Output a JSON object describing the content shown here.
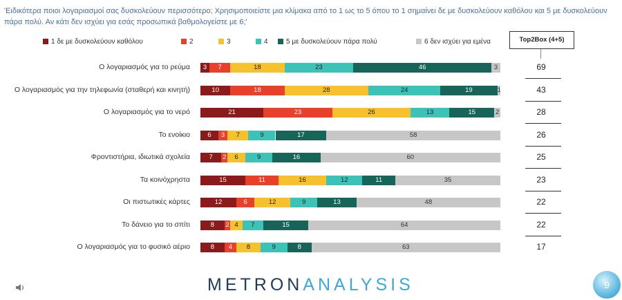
{
  "question": "'Ειδικότερα ποιοι λογαριασμοί σας δυσκολεύουν περισσότερο; Χρησιμοποιείστε μια κλίμακα από το 1 ως το 5 όπου το 1 σημαίνει δε με δυσκολεύουν καθόλου και 5 με δυσκολεύουν πάρα πολύ. Αν κάτι δεν ισχύει για εσάς προσωπικά βαθμολογείστε με 6;'",
  "top2_header": "Top2Box (4+5)",
  "brand": {
    "part1": "METRON",
    "part2": "ANALYSIS"
  },
  "page_number": "9",
  "colors": [
    "#8b1a1a",
    "#e8402a",
    "#f7c12d",
    "#3cc2b6",
    "#176559",
    "#c7c7c7"
  ],
  "label_colors": [
    "#ffffff",
    "#ffffff",
    "#222222",
    "#222222",
    "#ffffff",
    "#333333"
  ],
  "chart_data": {
    "type": "bar",
    "stacked": true,
    "orientation": "horizontal",
    "legend_placement": "top",
    "categories": [
      "Ο λογαριασμός για το ρεύμα",
      "Ο λογαριασμός για την τηλεφωνία (σταθερή και κινητή)",
      "Ο λογαριασμός για το νερό",
      "Το ενοίκιο",
      "Φροντιστήρια, ιδιωτικά σχολεία",
      "Τα κοινόχρηστα",
      "Οι πιστωτικές κάρτες",
      "Το δάνειο για το σπίτι",
      "Ο λογαριασμός για το φυσικό αέριο"
    ],
    "series": [
      {
        "name": "1  δε με δυσκολεύουν καθόλου",
        "values": [
          3,
          10,
          21,
          6,
          7,
          15,
          12,
          8,
          8
        ]
      },
      {
        "name": "2",
        "values": [
          7,
          18,
          23,
          3,
          2,
          11,
          6,
          2,
          4
        ]
      },
      {
        "name": "3",
        "values": [
          18,
          28,
          26,
          7,
          6,
          16,
          12,
          4,
          8
        ]
      },
      {
        "name": "4",
        "values": [
          23,
          24,
          13,
          9,
          9,
          12,
          9,
          7,
          9
        ]
      },
      {
        "name": "5 με δυσκολεύουν πάρα πολύ",
        "values": [
          46,
          19,
          15,
          17,
          16,
          11,
          13,
          15,
          8
        ]
      },
      {
        "name": "6 δεν ισχύει για εμένα",
        "values": [
          3,
          1,
          2,
          58,
          60,
          35,
          48,
          64,
          63
        ]
      }
    ],
    "top2box": [
      69,
      43,
      28,
      26,
      25,
      23,
      22,
      22,
      17
    ]
  }
}
